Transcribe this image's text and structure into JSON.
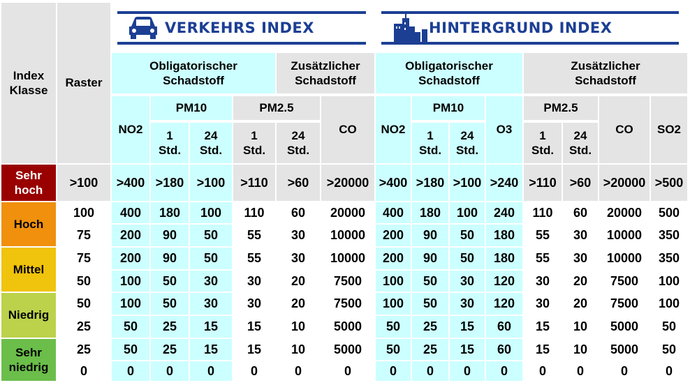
{
  "banners": {
    "verkehr": {
      "title": "VERKEHRS INDEX",
      "icon": "car-icon"
    },
    "hintergrund": {
      "title": "HINTERGRUND INDEX",
      "icon": "city-skyline-icon"
    }
  },
  "headers": {
    "index_klasse": "Index\nKlasse",
    "raster": "Raster",
    "obligatorisch": "Obligatorischer\nSchadstoff",
    "zusaetzlich": "Zusätzlicher\nSchadstoff",
    "no2": "NO2",
    "pm10": "PM10",
    "pm25": "PM2.5",
    "co": "CO",
    "o3": "O3",
    "so2": "SO2",
    "std1": "1\nStd.",
    "std24": "24\nStd."
  },
  "classes": [
    {
      "label": "Sehr\nhoch",
      "color": "#990000",
      "text_color": "#ffffff"
    },
    {
      "label": "Hoch",
      "color": "#f0900c",
      "text_color": "#000000"
    },
    {
      "label": "Mittel",
      "color": "#f0c30c",
      "text_color": "#000000"
    },
    {
      "label": "Niedrig",
      "color": "#bcd24b",
      "text_color": "#000000"
    },
    {
      "label": "Sehr\nniedrig",
      "color": "#6bbe4a",
      "text_color": "#000000"
    }
  ],
  "rows": [
    [
      ">100",
      ">400",
      ">180",
      ">100",
      ">110",
      ">60",
      ">20000",
      ">400",
      ">180",
      ">100",
      ">240",
      ">110",
      ">60",
      ">20000",
      ">500"
    ],
    [
      "100",
      "400",
      "180",
      "100",
      "110",
      "60",
      "20000",
      "400",
      "180",
      "100",
      "240",
      "110",
      "60",
      "20000",
      "500"
    ],
    [
      "75",
      "200",
      "90",
      "50",
      "55",
      "30",
      "10000",
      "200",
      "90",
      "50",
      "180",
      "55",
      "30",
      "10000",
      "350"
    ],
    [
      "75",
      "200",
      "90",
      "50",
      "55",
      "30",
      "10000",
      "200",
      "90",
      "50",
      "180",
      "55",
      "30",
      "10000",
      "350"
    ],
    [
      "50",
      "100",
      "50",
      "30",
      "30",
      "20",
      "7500",
      "100",
      "50",
      "30",
      "120",
      "30",
      "20",
      "7500",
      "100"
    ],
    [
      "50",
      "100",
      "50",
      "30",
      "30",
      "20",
      "7500",
      "100",
      "50",
      "30",
      "120",
      "30",
      "20",
      "7500",
      "100"
    ],
    [
      "25",
      "50",
      "25",
      "15",
      "15",
      "10",
      "5000",
      "50",
      "25",
      "15",
      "60",
      "15",
      "10",
      "5000",
      "50"
    ],
    [
      "25",
      "50",
      "25",
      "15",
      "15",
      "10",
      "5000",
      "50",
      "25",
      "15",
      "60",
      "15",
      "10",
      "5000",
      "50"
    ],
    [
      "0",
      "0",
      "0",
      "0",
      "0",
      "0",
      "0",
      "0",
      "0",
      "0",
      "0",
      "0",
      "0",
      "0",
      "0"
    ]
  ],
  "colors": {
    "header_gray": "#e4e4e4",
    "cyan": "#ccffff",
    "banner_blue": "#1c3f94"
  }
}
